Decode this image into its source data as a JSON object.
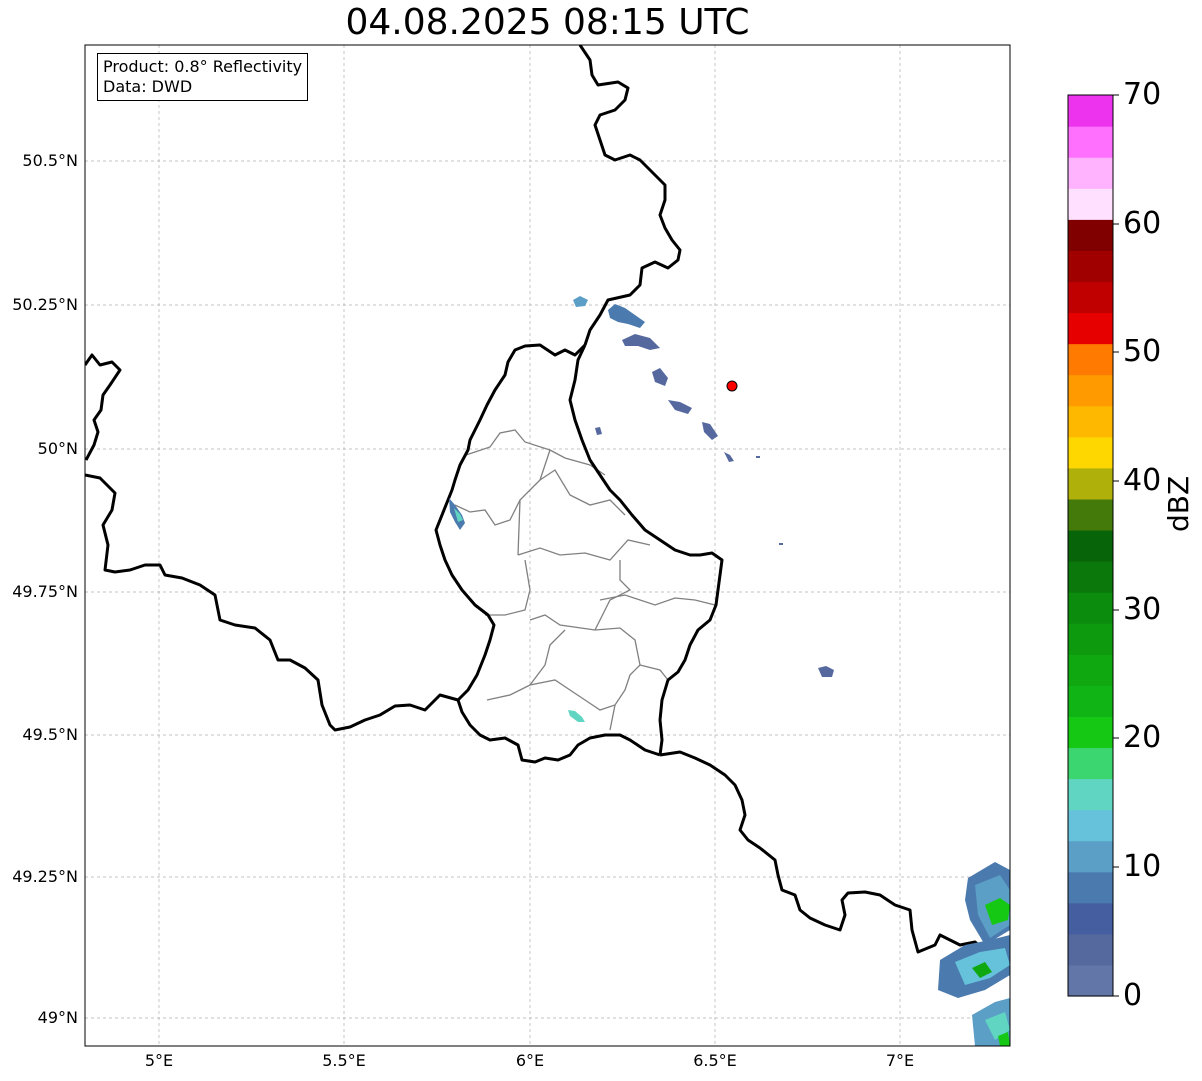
{
  "title": "04.08.2025 08:15 UTC",
  "info": {
    "product": "Product: 0.8° Reflectivity",
    "source": "Data: DWD"
  },
  "axes": {
    "lat_ticks": [
      "50.5°N",
      "50.25°N",
      "50°N",
      "49.75°N",
      "49.5°N",
      "49.25°N",
      "49°N"
    ],
    "lon_ticks": [
      "5°E",
      "5.5°E",
      "6°E",
      "6.5°E",
      "7°E"
    ]
  },
  "colorbar": {
    "label": "dBZ",
    "tick_labels": [
      "0",
      "10",
      "20",
      "30",
      "40",
      "50",
      "60",
      "70"
    ],
    "colors": [
      "#6376a8",
      "#56699f",
      "#445e9f",
      "#4b7aae",
      "#5b9ec6",
      "#66c2da",
      "#60d6c2",
      "#3cd670",
      "#14c814",
      "#10b414",
      "#10a810",
      "#0e9a0e",
      "#0c8c0c",
      "#0a780a",
      "#086408",
      "#447a0a",
      "#b0b00a",
      "#ffd700",
      "#ffb800",
      "#ff9a00",
      "#ff7a00",
      "#e60000",
      "#c00000",
      "#a00000",
      "#800000",
      "#ffe0ff",
      "#ffb3ff",
      "#ff70ff",
      "#ee33ee"
    ]
  },
  "station": {
    "color": "#ff0000"
  }
}
